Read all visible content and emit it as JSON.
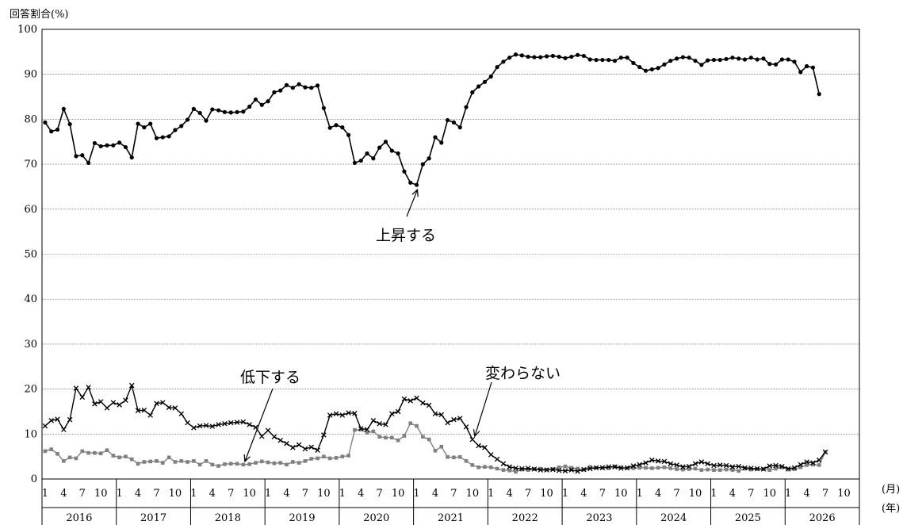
{
  "chart_data": {
    "type": "line",
    "ylabel": "回答割合(%)",
    "ylim": [
      0,
      100
    ],
    "yticks": [
      0,
      10,
      20,
      30,
      40,
      50,
      60,
      70,
      80,
      90,
      100
    ],
    "x_unit_month": "(月)",
    "x_unit_year": "(年)",
    "month_tick_labels": [
      "1",
      "4",
      "7",
      "10"
    ],
    "years": [
      "2016",
      "2017",
      "2018",
      "2019",
      "2020",
      "2021",
      "2022",
      "2023",
      "2024",
      "2025",
      "2026"
    ],
    "x_start": "2016-01",
    "grid": true,
    "series": [
      {
        "values": [
          79.3,
          77.3,
          77.7,
          82.3,
          78.9,
          71.8,
          72.0,
          70.3,
          74.7,
          74.0,
          74.2,
          74.2,
          74.8,
          73.8,
          71.5,
          79.0,
          78.2,
          79.0,
          75.8,
          76.0,
          76.2,
          77.6,
          78.5,
          79.9,
          82.3,
          81.4,
          79.7,
          82.2,
          82.0,
          81.6,
          81.5,
          81.6,
          81.7,
          82.8,
          84.4,
          83.2,
          84.0,
          86.0,
          86.4,
          87.6,
          87.0,
          87.8,
          87.1,
          87.0,
          87.5,
          82.5,
          78.1,
          78.7,
          78.2,
          76.5,
          70.3,
          70.8,
          72.4,
          71.3,
          73.7,
          75.0,
          73.0,
          72.4,
          68.4,
          65.9,
          65.4,
          70.0,
          71.3,
          76.0,
          74.8,
          79.8,
          79.3,
          78.2,
          82.7,
          86.0,
          87.3,
          88.3,
          89.5,
          91.6,
          92.8,
          93.7,
          94.4,
          94.2,
          93.9,
          93.8,
          93.8,
          94.0,
          94.1,
          93.9,
          93.6,
          93.9,
          94.3,
          94.1,
          93.3,
          93.2,
          93.2,
          93.2,
          93.0,
          93.7,
          93.7,
          92.5,
          91.6,
          90.8,
          91.1,
          91.4,
          92.2,
          93.0,
          93.5,
          93.8,
          93.7,
          93.0,
          92.1,
          93.1,
          93.2,
          93.2,
          93.4,
          93.7,
          93.5,
          93.3,
          93.7,
          93.3,
          93.5,
          92.3,
          92.2,
          93.3,
          93.3,
          92.8,
          90.5,
          91.8,
          91.5,
          85.6
        ],
        "marker": "circle",
        "color": "#000000",
        "annotation": "上昇する"
      },
      {
        "values": [
          11.8,
          13.0,
          13.3,
          11.0,
          13.2,
          20.2,
          18.2,
          20.4,
          16.7,
          17.2,
          15.8,
          17.0,
          16.5,
          17.5,
          20.8,
          15.2,
          15.3,
          14.2,
          16.8,
          17.0,
          15.9,
          15.8,
          14.5,
          12.5,
          11.4,
          11.8,
          11.9,
          11.7,
          12.1,
          12.3,
          12.5,
          12.6,
          12.7,
          12.1,
          11.5,
          9.5,
          10.8,
          9.4,
          8.6,
          7.9,
          7.0,
          7.6,
          6.7,
          7.1,
          6.4,
          9.8,
          14.2,
          14.5,
          14.2,
          14.7,
          14.6,
          11.2,
          11.0,
          13.0,
          12.3,
          12.1,
          14.5,
          15.0,
          17.8,
          17.4,
          18.0,
          16.9,
          16.4,
          14.5,
          14.3,
          12.5,
          13.2,
          13.5,
          11.6,
          8.8,
          7.4,
          7.0,
          5.4,
          4.4,
          3.4,
          2.7,
          2.4,
          2.3,
          2.4,
          2.2,
          2.0,
          2.0,
          2.1,
          1.9,
          1.8,
          2.0,
          1.7,
          2.1,
          2.3,
          2.5,
          2.5,
          2.7,
          2.7,
          2.4,
          2.5,
          2.9,
          3.2,
          3.6,
          4.2,
          4.0,
          3.9,
          3.4,
          3.1,
          2.7,
          2.8,
          3.4,
          3.8,
          3.4,
          3.0,
          3.1,
          3.0,
          2.7,
          2.8,
          2.5,
          2.4,
          2.3,
          2.2,
          2.9,
          3.0,
          2.8,
          2.3,
          2.5,
          3.2,
          3.8,
          3.6,
          4.2,
          6.0
        ],
        "marker": "cross",
        "color": "#000000",
        "annotation": "変わらない"
      },
      {
        "values": [
          6.2,
          6.6,
          5.6,
          4.0,
          4.8,
          4.6,
          6.2,
          5.8,
          5.8,
          5.7,
          6.4,
          5.2,
          4.8,
          5.0,
          4.4,
          3.4,
          3.8,
          3.9,
          4.0,
          3.6,
          4.8,
          3.8,
          4.0,
          3.8,
          4.0,
          3.2,
          4.0,
          3.2,
          2.9,
          3.3,
          3.4,
          3.4,
          3.2,
          3.3,
          3.6,
          3.9,
          3.7,
          3.5,
          3.6,
          3.2,
          3.8,
          3.6,
          4.0,
          4.5,
          4.6,
          5.0,
          4.6,
          4.7,
          5.0,
          5.2,
          10.9,
          11.0,
          10.3,
          10.6,
          9.4,
          9.2,
          9.2,
          8.6,
          9.6,
          12.4,
          11.8,
          9.4,
          8.8,
          6.3,
          7.2,
          4.9,
          4.8,
          4.9,
          4.0,
          3.1,
          2.6,
          2.7,
          2.6,
          2.3,
          2.0,
          1.9,
          1.6,
          2.1,
          2.0,
          2.2,
          2.3,
          2.1,
          2.2,
          2.6,
          2.8,
          2.5,
          2.3,
          2.1,
          2.7,
          2.5,
          2.5,
          2.4,
          2.8,
          2.6,
          2.4,
          2.4,
          2.5,
          2.5,
          2.4,
          2.5,
          2.6,
          2.4,
          2.2,
          2.1,
          2.2,
          2.3,
          2.0,
          2.1,
          2.0,
          2.0,
          2.1,
          2.0,
          1.8,
          2.3,
          2.1,
          2.2,
          2.2,
          2.0,
          2.3,
          2.6,
          2.1,
          2.2,
          2.6,
          3.1,
          3.2,
          3.1,
          6.0
        ],
        "marker": "square",
        "color": "#808080",
        "annotation": "低下する"
      }
    ]
  }
}
